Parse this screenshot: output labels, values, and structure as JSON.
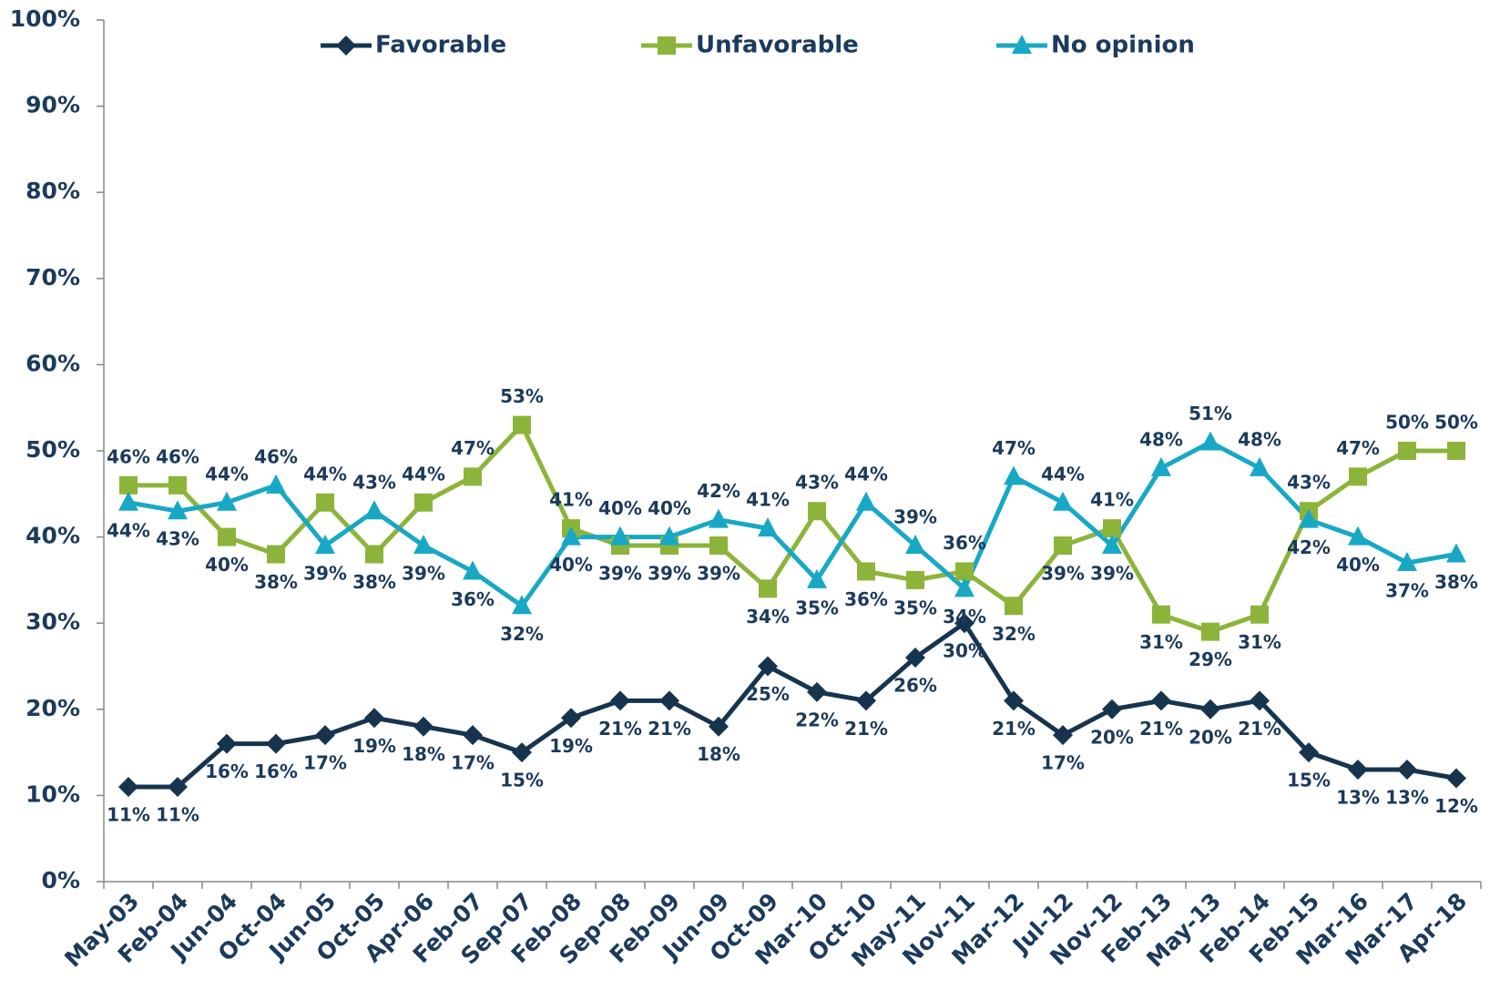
{
  "chart_data": {
    "type": "line",
    "categories": [
      "May-03",
      "Feb-04",
      "Jun-04",
      "Oct-04",
      "Jun-05",
      "Oct-05",
      "Apr-06",
      "Feb-07",
      "Sep-07",
      "Feb-08",
      "Sep-08",
      "Feb-09",
      "Jun-09",
      "Oct-09",
      "Mar-10",
      "Oct-10",
      "May-11",
      "Nov-11",
      "Mar-12",
      "Jul-12",
      "Nov-12",
      "Feb-13",
      "May-13",
      "Feb-14",
      "Feb-15",
      "Mar-16",
      "Mar-17",
      "Apr-18"
    ],
    "series": [
      {
        "name": "Favorable",
        "color": "#17344f",
        "marker": "diamond",
        "values": [
          11,
          11,
          16,
          16,
          17,
          19,
          18,
          17,
          15,
          19,
          21,
          21,
          18,
          25,
          22,
          21,
          26,
          30,
          21,
          17,
          20,
          21,
          20,
          21,
          15,
          13,
          13,
          12
        ],
        "value_labels": [
          "11%",
          "11%",
          "16%",
          "16%",
          "17%",
          "19%",
          "18%",
          "17%",
          "15%",
          "19%",
          "21%",
          "21%",
          "18%",
          "25%",
          "22%",
          "21%",
          "26%",
          "30%",
          "21%",
          "17%",
          "20%",
          "21%",
          "20%",
          "21%",
          "15%",
          "13%",
          "13%",
          "12%"
        ]
      },
      {
        "name": "Unfavorable",
        "color": "#8cb43a",
        "marker": "square",
        "values": [
          46,
          46,
          40,
          38,
          44,
          38,
          44,
          47,
          53,
          41,
          39,
          39,
          39,
          34,
          43,
          36,
          35,
          36,
          32,
          39,
          41,
          31,
          29,
          31,
          43,
          47,
          50,
          50
        ],
        "value_labels": [
          "46%",
          "46%",
          "40%",
          "38%",
          "44%",
          "38%",
          "44%",
          "47%",
          "53%",
          "41%",
          "39%",
          "39%",
          "39%",
          "34%",
          "43%",
          "36%",
          "35%",
          "36%",
          "32%",
          "39%",
          "41%",
          "31%",
          "29%",
          "31%",
          "43%",
          "47%",
          "50%",
          "50%"
        ]
      },
      {
        "name": "No opinion",
        "color": "#18a8c6",
        "marker": "triangle",
        "values": [
          44,
          43,
          44,
          46,
          39,
          43,
          39,
          36,
          32,
          40,
          40,
          40,
          42,
          41,
          35,
          44,
          39,
          34,
          47,
          44,
          39,
          48,
          51,
          48,
          42,
          40,
          37,
          38
        ],
        "value_labels": [
          "44%",
          "43%",
          "44%",
          "46%",
          "39%",
          "43%",
          "39%",
          "36%",
          "32%",
          "40%",
          "40%",
          "40%",
          "42%",
          "41%",
          "35%",
          "44%",
          "39%",
          "34%",
          "47%",
          "44%",
          "39%",
          "48%",
          "51%",
          "48%",
          "42%",
          "40%",
          "37%",
          "38%"
        ]
      }
    ],
    "ylim": [
      0,
      100
    ],
    "yticks": [
      {
        "value": 0,
        "label": "0%"
      },
      {
        "value": 10,
        "label": "10%"
      },
      {
        "value": 20,
        "label": "20%"
      },
      {
        "value": 30,
        "label": "30%"
      },
      {
        "value": 40,
        "label": "40%"
      },
      {
        "value": 50,
        "label": "50%"
      },
      {
        "value": 60,
        "label": "60%"
      },
      {
        "value": 70,
        "label": "70%"
      },
      {
        "value": 80,
        "label": "80%"
      },
      {
        "value": 90,
        "label": "90%"
      },
      {
        "value": 100,
        "label": "100%"
      }
    ],
    "grid": false,
    "legend": "top"
  }
}
